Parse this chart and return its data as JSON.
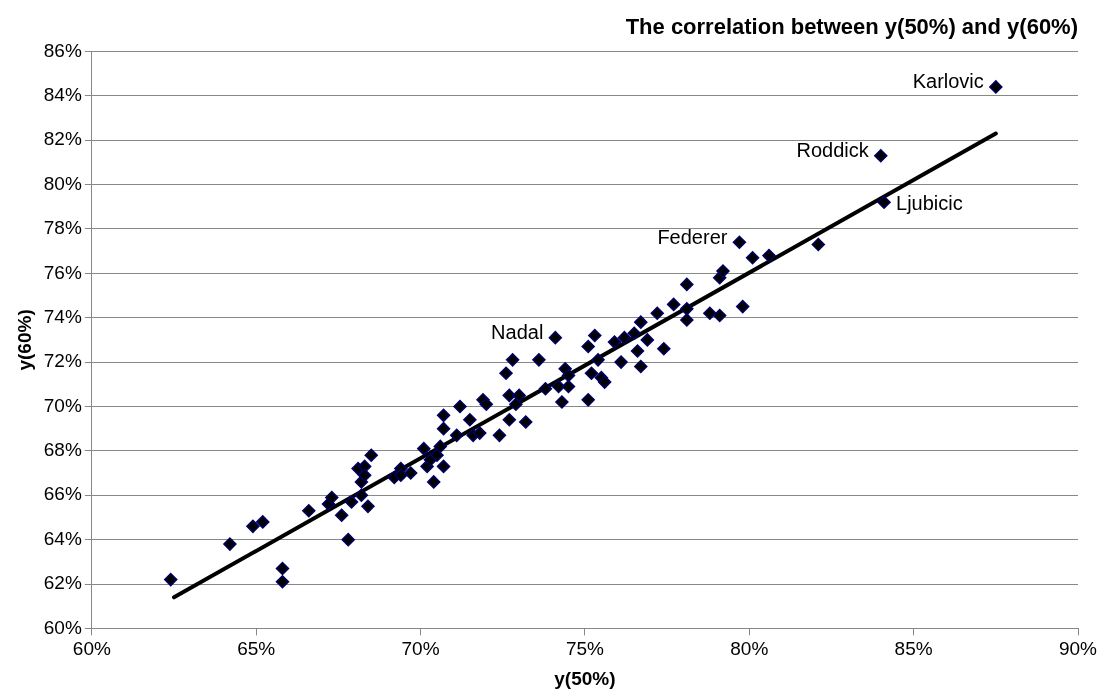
{
  "chart_data": {
    "type": "scatter",
    "title": "The correlation between y(50%) and y(60%)",
    "xlabel": "y(50%)",
    "ylabel": "y(60%)",
    "xlim": [
      60,
      90
    ],
    "xticks": [
      {
        "value": 60,
        "label": "60%"
      },
      {
        "value": 65,
        "label": "65%"
      },
      {
        "value": 70,
        "label": "70%"
      },
      {
        "value": 75,
        "label": "75%"
      },
      {
        "value": 80,
        "label": "80%"
      },
      {
        "value": 85,
        "label": "85%"
      },
      {
        "value": 90,
        "label": "90%"
      }
    ],
    "ylim": [
      60,
      86
    ],
    "yticks": [
      {
        "value": 60,
        "label": "60%"
      },
      {
        "value": 62,
        "label": "62%"
      },
      {
        "value": 64,
        "label": "64%"
      },
      {
        "value": 66,
        "label": "66%"
      },
      {
        "value": 68,
        "label": "68%"
      },
      {
        "value": 70,
        "label": "70%"
      },
      {
        "value": 72,
        "label": "72%"
      },
      {
        "value": 74,
        "label": "74%"
      },
      {
        "value": 76,
        "label": "76%"
      },
      {
        "value": 78,
        "label": "78%"
      },
      {
        "value": 80,
        "label": "80%"
      },
      {
        "value": 82,
        "label": "82%"
      },
      {
        "value": 84,
        "label": "84%"
      },
      {
        "value": 86,
        "label": "86%"
      }
    ],
    "grid": "y",
    "legend": false,
    "marker": "diamond",
    "series": [
      {
        "color": "#000066",
        "x": [
          62.4,
          64.2,
          64.9,
          65.2,
          65.8,
          65.8,
          66.6,
          67.2,
          67.3,
          67.6,
          67.8,
          67.9,
          68.1,
          68.2,
          68.2,
          68.3,
          68.3,
          68.4,
          68.5,
          69.2,
          69.4,
          69.4,
          69.7,
          70.1,
          70.2,
          70.3,
          70.4,
          70.5,
          70.6,
          70.7,
          70.7,
          70.7,
          71.1,
          71.2,
          71.5,
          71.6,
          71.8,
          71.9,
          72.0,
          72.4,
          72.6,
          72.7,
          72.7,
          72.8,
          72.9,
          73.0,
          73.2,
          73.6,
          73.8,
          74.1,
          74.2,
          74.3,
          74.4,
          74.5,
          74.5,
          75.1,
          75.1,
          75.2,
          75.3,
          75.4,
          75.5,
          75.6,
          75.9,
          76.1,
          76.2,
          76.5,
          76.6,
          76.7,
          76.7,
          76.9,
          77.2,
          77.4,
          77.7,
          78.1,
          78.1,
          78.1,
          78.8,
          79.1,
          79.1,
          79.2,
          79.7,
          79.8,
          80.1,
          80.6,
          82.1,
          84.0,
          84.1,
          87.5
        ],
        "values": [
          62.2,
          63.8,
          64.6,
          64.8,
          62.7,
          62.1,
          65.3,
          65.6,
          65.9,
          65.1,
          64.0,
          65.7,
          67.2,
          66.0,
          66.6,
          67.3,
          66.9,
          65.5,
          67.8,
          66.8,
          67.2,
          66.9,
          67.0,
          68.1,
          67.3,
          67.6,
          66.6,
          67.8,
          68.2,
          69.0,
          69.6,
          67.3,
          68.7,
          70.0,
          69.4,
          68.7,
          68.8,
          70.3,
          70.1,
          68.7,
          71.5,
          70.5,
          69.4,
          72.1,
          70.1,
          70.5,
          69.3,
          72.1,
          70.8,
          73.1,
          70.9,
          70.2,
          71.7,
          71.4,
          70.9,
          72.7,
          70.3,
          71.5,
          73.2,
          72.1,
          71.3,
          71.1,
          72.9,
          72.0,
          73.1,
          73.3,
          72.5,
          73.8,
          71.8,
          73.0,
          74.2,
          72.6,
          74.6,
          74.4,
          73.9,
          75.5,
          74.2,
          75.8,
          74.1,
          76.1,
          77.4,
          74.5,
          76.7,
          76.8,
          77.3,
          81.3,
          79.2,
          84.4
        ]
      },
      {
        "type": "line",
        "color": "#000000",
        "marker": "none",
        "x": [
          62.5,
          87.5
        ],
        "values": [
          61.4,
          82.3
        ]
      }
    ],
    "annotations": [
      {
        "text": "Nadal",
        "x": 74.1,
        "y": 73.1
      },
      {
        "text": "Federer",
        "x": 79.7,
        "y": 77.4
      },
      {
        "text": "Roddick",
        "x": 84.0,
        "y": 81.3
      },
      {
        "text": "Ljubicic",
        "x": 84.1,
        "y": 79.2
      },
      {
        "text": "Karlovic",
        "x": 87.5,
        "y": 84.4
      }
    ]
  }
}
